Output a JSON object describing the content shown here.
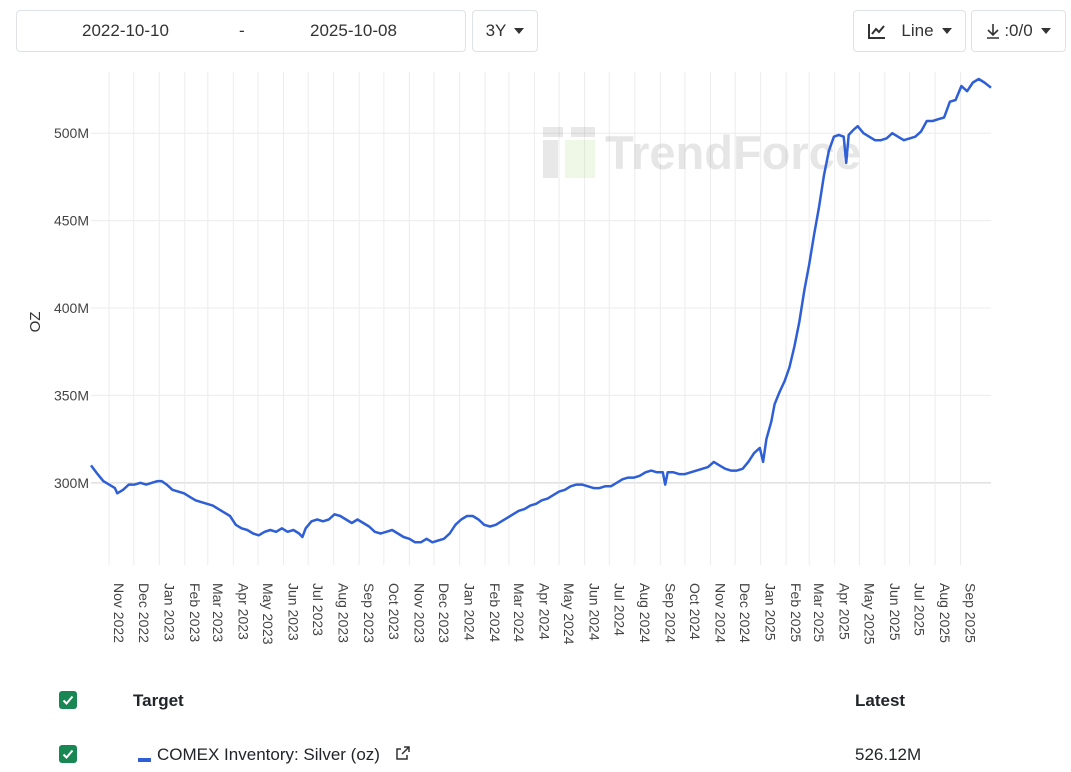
{
  "toolbar": {
    "date_start": "2022-10-10",
    "date_separator": "-",
    "date_end": "2025-10-08",
    "range_label": "3Y",
    "chart_type_label": "Line",
    "download_label": ":0/0",
    "chart_type_icon": "line-chart-icon",
    "download_icon": "download-icon"
  },
  "watermark": "TrendForce",
  "table": {
    "header_target": "Target",
    "header_latest": "Latest",
    "rows": [
      {
        "name": "COMEX Inventory: Silver (oz)",
        "latest": "526.12M",
        "color": "#2f5fd6"
      }
    ]
  },
  "chart_data": {
    "type": "line",
    "ylabel": "OZ",
    "xlabel": "",
    "title": "",
    "ylim": [
      253,
      535
    ],
    "yticks": [
      300,
      350,
      400,
      450,
      500
    ],
    "ytick_labels": [
      "300M",
      "350M",
      "400M",
      "450M",
      "500M"
    ],
    "xtick_labels": [
      "Nov 2022",
      "Dec 2022",
      "Jan 2023",
      "Feb 2023",
      "Mar 2023",
      "Apr 2023",
      "May 2023",
      "Jun 2023",
      "Jul 2023",
      "Aug 2023",
      "Sep 2023",
      "Oct 2023",
      "Nov 2023",
      "Dec 2023",
      "Jan 2024",
      "Feb 2024",
      "Mar 2024",
      "Apr 2024",
      "May 2024",
      "Jun 2024",
      "Jul 2024",
      "Aug 2024",
      "Sep 2024",
      "Oct 2024",
      "Nov 2024",
      "Dec 2024",
      "Jan 2025",
      "Feb 2025",
      "Mar 2025",
      "Apr 2025",
      "May 2025",
      "Jun 2025",
      "Jul 2025",
      "Aug 2025",
      "Sep 2025"
    ],
    "grid": true,
    "x_start": "2022-10-10",
    "x_end": "2025-10-08",
    "series": [
      {
        "name": "COMEX Inventory: Silver (oz)",
        "color": "#2f5fd6",
        "points": [
          [
            "2022-10-10",
            310
          ],
          [
            "2022-10-18",
            305
          ],
          [
            "2022-10-25",
            301
          ],
          [
            "2022-11-01",
            299
          ],
          [
            "2022-11-08",
            297
          ],
          [
            "2022-11-11",
            294
          ],
          [
            "2022-11-18",
            296
          ],
          [
            "2022-11-25",
            299
          ],
          [
            "2022-12-02",
            299
          ],
          [
            "2022-12-09",
            300
          ],
          [
            "2022-12-16",
            299
          ],
          [
            "2022-12-23",
            300
          ],
          [
            "2022-12-30",
            301
          ],
          [
            "2023-01-04",
            301
          ],
          [
            "2023-01-10",
            299
          ],
          [
            "2023-01-17",
            296
          ],
          [
            "2023-01-24",
            295
          ],
          [
            "2023-01-31",
            294
          ],
          [
            "2023-02-07",
            292
          ],
          [
            "2023-02-14",
            290
          ],
          [
            "2023-02-21",
            289
          ],
          [
            "2023-02-28",
            288
          ],
          [
            "2023-03-07",
            287
          ],
          [
            "2023-03-14",
            285
          ],
          [
            "2023-03-21",
            283
          ],
          [
            "2023-03-28",
            281
          ],
          [
            "2023-04-04",
            276
          ],
          [
            "2023-04-11",
            274
          ],
          [
            "2023-04-18",
            273
          ],
          [
            "2023-04-25",
            271
          ],
          [
            "2023-05-02",
            270
          ],
          [
            "2023-05-09",
            272
          ],
          [
            "2023-05-16",
            273
          ],
          [
            "2023-05-23",
            272
          ],
          [
            "2023-05-30",
            274
          ],
          [
            "2023-06-06",
            272
          ],
          [
            "2023-06-13",
            273
          ],
          [
            "2023-06-20",
            271
          ],
          [
            "2023-06-24",
            269
          ],
          [
            "2023-06-28",
            274
          ],
          [
            "2023-07-05",
            278
          ],
          [
            "2023-07-12",
            279
          ],
          [
            "2023-07-19",
            278
          ],
          [
            "2023-07-26",
            279
          ],
          [
            "2023-08-02",
            282
          ],
          [
            "2023-08-09",
            281
          ],
          [
            "2023-08-16",
            279
          ],
          [
            "2023-08-23",
            277
          ],
          [
            "2023-08-30",
            279
          ],
          [
            "2023-09-06",
            277
          ],
          [
            "2023-09-13",
            275
          ],
          [
            "2023-09-20",
            272
          ],
          [
            "2023-09-27",
            271
          ],
          [
            "2023-10-04",
            272
          ],
          [
            "2023-10-11",
            273
          ],
          [
            "2023-10-18",
            271
          ],
          [
            "2023-10-25",
            269
          ],
          [
            "2023-11-01",
            268
          ],
          [
            "2023-11-08",
            266
          ],
          [
            "2023-11-15",
            266
          ],
          [
            "2023-11-22",
            268
          ],
          [
            "2023-11-29",
            266
          ],
          [
            "2023-12-06",
            267
          ],
          [
            "2023-12-13",
            268
          ],
          [
            "2023-12-20",
            271
          ],
          [
            "2023-12-27",
            276
          ],
          [
            "2024-01-03",
            279
          ],
          [
            "2024-01-10",
            281
          ],
          [
            "2024-01-17",
            281
          ],
          [
            "2024-01-24",
            279
          ],
          [
            "2024-01-31",
            276
          ],
          [
            "2024-02-07",
            275
          ],
          [
            "2024-02-14",
            276
          ],
          [
            "2024-02-21",
            278
          ],
          [
            "2024-02-28",
            280
          ],
          [
            "2024-03-06",
            282
          ],
          [
            "2024-03-13",
            284
          ],
          [
            "2024-03-20",
            285
          ],
          [
            "2024-03-27",
            287
          ],
          [
            "2024-04-03",
            288
          ],
          [
            "2024-04-10",
            290
          ],
          [
            "2024-04-17",
            291
          ],
          [
            "2024-04-24",
            293
          ],
          [
            "2024-05-01",
            295
          ],
          [
            "2024-05-08",
            296
          ],
          [
            "2024-05-15",
            298
          ],
          [
            "2024-05-22",
            299
          ],
          [
            "2024-05-29",
            299
          ],
          [
            "2024-06-05",
            298
          ],
          [
            "2024-06-12",
            297
          ],
          [
            "2024-06-19",
            297
          ],
          [
            "2024-06-26",
            298
          ],
          [
            "2024-07-03",
            298
          ],
          [
            "2024-07-10",
            300
          ],
          [
            "2024-07-17",
            302
          ],
          [
            "2024-07-24",
            303
          ],
          [
            "2024-07-31",
            303
          ],
          [
            "2024-08-07",
            304
          ],
          [
            "2024-08-14",
            306
          ],
          [
            "2024-08-21",
            307
          ],
          [
            "2024-08-28",
            306
          ],
          [
            "2024-09-04",
            306
          ],
          [
            "2024-09-07",
            299
          ],
          [
            "2024-09-10",
            306
          ],
          [
            "2024-09-17",
            306
          ],
          [
            "2024-09-24",
            305
          ],
          [
            "2024-10-01",
            305
          ],
          [
            "2024-10-08",
            306
          ],
          [
            "2024-10-15",
            307
          ],
          [
            "2024-10-22",
            308
          ],
          [
            "2024-10-29",
            309
          ],
          [
            "2024-11-05",
            312
          ],
          [
            "2024-11-12",
            310
          ],
          [
            "2024-11-19",
            308
          ],
          [
            "2024-11-26",
            307
          ],
          [
            "2024-12-03",
            307
          ],
          [
            "2024-12-10",
            308
          ],
          [
            "2024-12-17",
            312
          ],
          [
            "2024-12-24",
            317
          ],
          [
            "2024-12-31",
            320
          ],
          [
            "2025-01-04",
            312
          ],
          [
            "2025-01-08",
            325
          ],
          [
            "2025-01-14",
            335
          ],
          [
            "2025-01-18",
            345
          ],
          [
            "2025-01-24",
            352
          ],
          [
            "2025-01-30",
            358
          ],
          [
            "2025-02-05",
            366
          ],
          [
            "2025-02-11",
            378
          ],
          [
            "2025-02-17",
            392
          ],
          [
            "2025-02-23",
            410
          ],
          [
            "2025-03-01",
            425
          ],
          [
            "2025-03-07",
            442
          ],
          [
            "2025-03-13",
            458
          ],
          [
            "2025-03-19",
            476
          ],
          [
            "2025-03-25",
            490
          ],
          [
            "2025-03-31",
            498
          ],
          [
            "2025-04-06",
            499
          ],
          [
            "2025-04-12",
            498
          ],
          [
            "2025-04-15",
            483
          ],
          [
            "2025-04-18",
            499
          ],
          [
            "2025-04-24",
            502
          ],
          [
            "2025-04-29",
            504
          ],
          [
            "2025-05-06",
            500
          ],
          [
            "2025-05-13",
            498
          ],
          [
            "2025-05-20",
            496
          ],
          [
            "2025-05-27",
            496
          ],
          [
            "2025-06-03",
            497
          ],
          [
            "2025-06-10",
            500
          ],
          [
            "2025-06-17",
            498
          ],
          [
            "2025-06-24",
            496
          ],
          [
            "2025-07-01",
            497
          ],
          [
            "2025-07-08",
            498
          ],
          [
            "2025-07-15",
            501
          ],
          [
            "2025-07-22",
            507
          ],
          [
            "2025-07-29",
            507
          ],
          [
            "2025-08-05",
            508
          ],
          [
            "2025-08-12",
            509
          ],
          [
            "2025-08-19",
            518
          ],
          [
            "2025-08-26",
            519
          ],
          [
            "2025-09-02",
            527
          ],
          [
            "2025-09-09",
            524
          ],
          [
            "2025-09-16",
            529
          ],
          [
            "2025-09-23",
            531
          ],
          [
            "2025-09-30",
            529
          ],
          [
            "2025-10-08",
            526
          ]
        ]
      }
    ]
  }
}
